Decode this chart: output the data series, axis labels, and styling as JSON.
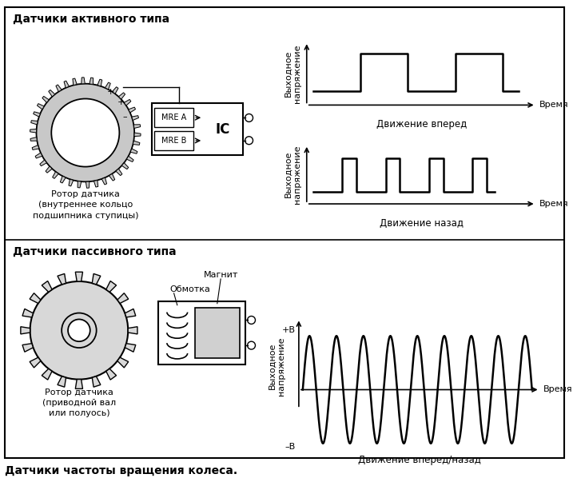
{
  "title": "Датчики частоты вращения колеса.",
  "active_title": "Датчики активного типа",
  "passive_title": "Датчики пассивного типа",
  "active_rotor_label": "Ротор датчика\n(внутреннее кольцо\nподшипника ступицы)",
  "passive_rotor_label": "Ротор датчика\n(приводной вал\nили полуось)",
  "forward_label": "Движение вперед",
  "backward_label": "Движение назад",
  "both_label": "Движение вперед/назад",
  "time_label": "Время",
  "voltage_label": "Выходное\nнапряжение",
  "plus_b": "+В",
  "minus_b": "–В",
  "magnet_label": "Магнит",
  "coil_label": "Обмотка",
  "mre_a": "MRE A",
  "mre_b": "MRE B",
  "ic_label": "IC",
  "line_color": "#000000",
  "font_family": "DejaVu Sans",
  "fig_w": 7.22,
  "fig_h": 6.03,
  "dpi": 100
}
